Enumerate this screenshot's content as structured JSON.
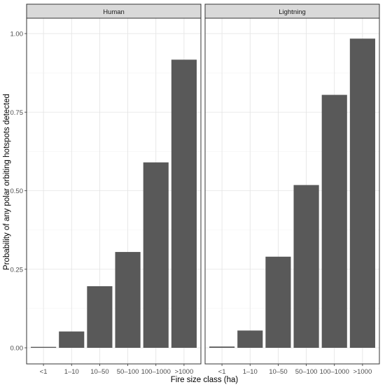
{
  "chart_data": {
    "type": "bar",
    "xlabel": "Fire size class (ha)",
    "ylabel": "Probability of any polar orbiting hotspots detected",
    "categories": [
      "<1",
      "1–10",
      "10–50",
      "50–100",
      "100–1000",
      ">1000"
    ],
    "ylim": [
      0,
      1.0
    ],
    "yticks": [
      "0.00",
      "0.25",
      "0.50",
      "0.75",
      "1.00"
    ],
    "grid": true,
    "bar_color": "#595959",
    "panels": [
      {
        "title": "Human",
        "values": [
          0.003,
          0.052,
          0.196,
          0.305,
          0.59,
          0.917
        ]
      },
      {
        "title": "Lightning",
        "values": [
          0.004,
          0.055,
          0.29,
          0.518,
          0.805,
          0.984
        ]
      }
    ]
  }
}
